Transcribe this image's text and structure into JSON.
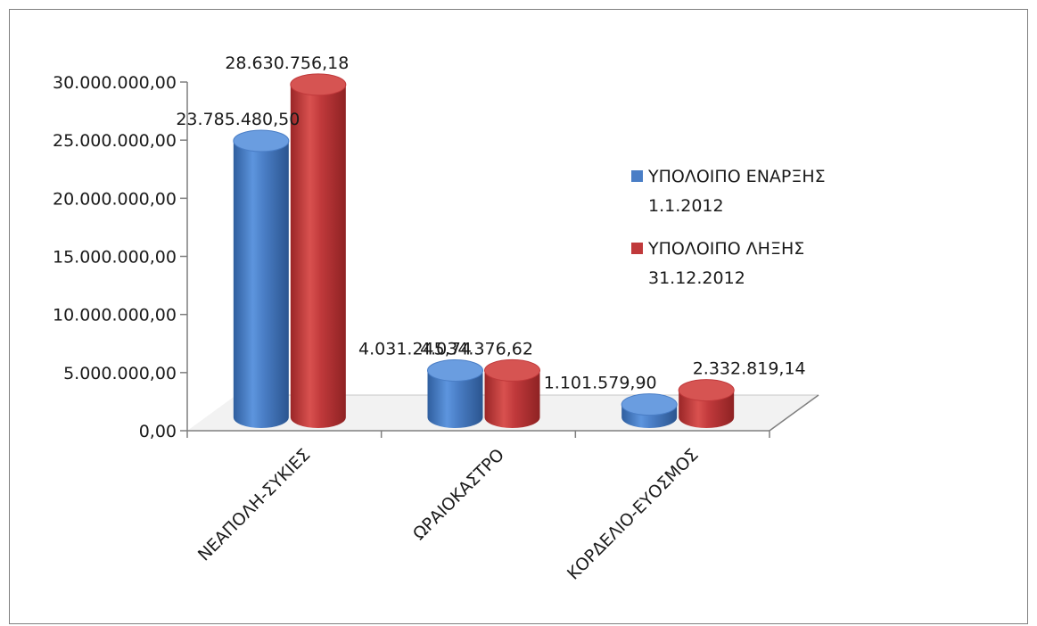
{
  "chart_data": {
    "type": "bar",
    "categories": [
      "ΝΕΑΠΟΛΗ-ΣΥΚΙΕΣ",
      "ΩΡΑΙΟΚΑΣΤΡΟ",
      "ΚΟΡΔΕΛΙΟ-ΕΥΟΣΜΟΣ"
    ],
    "series": [
      {
        "name": "ΥΠΟΛΟΙΠΟ ΕΝΑΡΞΗΣ 1.1.2012",
        "name_lines": [
          "ΥΠΟΛΟΙΠΟ ΕΝΑΡΞΗΣ",
          "1.1.2012"
        ],
        "color": "#4a7ec6",
        "values": [
          23785480.5,
          4031245.74,
          1101579.9
        ],
        "labels": [
          "23.785.480,50",
          "4.031.245,74",
          "1.101.579,90"
        ]
      },
      {
        "name": "ΥΠΟΛΟΙΠΟ ΛΗΞΗΣ 31.12.2012",
        "name_lines": [
          "ΥΠΟΛΟΙΠΟ ΛΗΞΗΣ",
          "31.12.2012"
        ],
        "color": "#c0393b",
        "values": [
          28630756.18,
          4034376.62,
          2332819.14
        ],
        "labels": [
          "28.630.756,18",
          "4.034.376,62",
          "2.332.819,14"
        ]
      }
    ],
    "ylim": [
      0,
      30000000
    ],
    "yticks": [
      {
        "value": 0,
        "label": "0,00"
      },
      {
        "value": 5000000,
        "label": "5.000.000,00"
      },
      {
        "value": 10000000,
        "label": "10.000.000,00"
      },
      {
        "value": 15000000,
        "label": "15.000.000,00"
      },
      {
        "value": 20000000,
        "label": "20.000.000,00"
      },
      {
        "value": 25000000,
        "label": "25.000.000,00"
      },
      {
        "value": 30000000,
        "label": "30.000.000,00"
      }
    ],
    "legend_position": "right",
    "title": "",
    "xlabel": "",
    "ylabel": ""
  }
}
